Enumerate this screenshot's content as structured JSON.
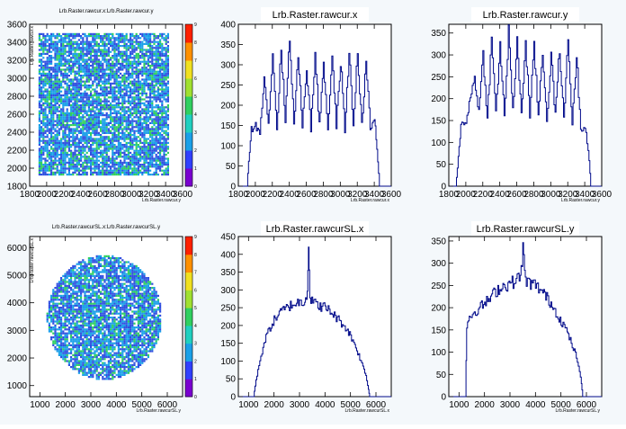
{
  "chart_data": [
    {
      "type": "heatmap",
      "title": "Lrb.Raster.rawcur.x:Lrb.Raster.rawcur.y",
      "xlabel": "Lrb.Raster.rawcur.y",
      "ylabel": "Lrb.Raster.rawcur.x",
      "xlim": [
        1800,
        3600
      ],
      "ylim": [
        1800,
        3600
      ],
      "xticks": [
        1800,
        2000,
        2200,
        2400,
        2600,
        2800,
        3000,
        3200,
        3400,
        3600
      ],
      "yticks": [
        1800,
        2000,
        2200,
        2400,
        2600,
        2800,
        3000,
        3200,
        3400,
        3600
      ],
      "region": {
        "shape": "rectangle",
        "x": [
          1900,
          3440
        ],
        "y": [
          1920,
          3520
        ]
      },
      "colorbar": {
        "min": 0,
        "max": 9,
        "ticks": [
          0,
          1,
          2,
          3,
          4,
          5,
          6,
          7,
          8,
          9
        ]
      },
      "colors": {
        "low": "#3050e0",
        "mid": "#1aa0e8",
        "high": "#30d060"
      }
    },
    {
      "type": "line",
      "title": "Lrb.Raster.rawcur.x",
      "xlabel": "Lrb.Raster.rawcur.x",
      "xlim": [
        1800,
        3600
      ],
      "ylim": [
        0,
        400
      ],
      "xticks": [
        1800,
        2000,
        2200,
        2400,
        2600,
        2800,
        3000,
        3200,
        3400,
        3600
      ],
      "yticks": [
        0,
        50,
        100,
        150,
        200,
        250,
        300,
        350,
        400
      ],
      "series": [
        {
          "x": [
            1800,
            1900,
            1920,
            1950,
            2000,
            2050,
            2100,
            2150,
            2200,
            2250,
            2300,
            2350,
            2400,
            2450,
            2500,
            2550,
            2600,
            2650,
            2700,
            2750,
            2800,
            2850,
            2900,
            2950,
            3000,
            3050,
            3100,
            3150,
            3200,
            3250,
            3300,
            3350,
            3400,
            3440,
            3460,
            3500,
            3600
          ],
          "y": [
            0,
            0,
            60,
            140,
            150,
            130,
            280,
            150,
            330,
            140,
            340,
            160,
            380,
            150,
            320,
            150,
            300,
            140,
            330,
            150,
            310,
            140,
            320,
            150,
            310,
            140,
            330,
            150,
            330,
            150,
            310,
            140,
            170,
            60,
            0,
            0,
            0
          ]
        }
      ]
    },
    {
      "type": "line",
      "title": "Lrb.Raster.rawcur.y",
      "xlabel": "Lrb.Raster.rawcur.y",
      "xlim": [
        1800,
        3600
      ],
      "ylim": [
        0,
        370
      ],
      "xticks": [
        1800,
        2000,
        2200,
        2400,
        2600,
        2800,
        3000,
        3200,
        3400,
        3600
      ],
      "yticks": [
        0,
        50,
        100,
        150,
        200,
        250,
        300,
        350
      ],
      "series": [
        {
          "x": [
            1800,
            1880,
            1900,
            1940,
            2000,
            2050,
            2100,
            2150,
            2200,
            2250,
            2300,
            2350,
            2400,
            2450,
            2500,
            2550,
            2600,
            2650,
            2700,
            2750,
            2800,
            2850,
            2900,
            2950,
            3000,
            3050,
            3100,
            3150,
            3200,
            3250,
            3300,
            3350,
            3400,
            3450,
            3470,
            3520,
            3600
          ],
          "y": [
            0,
            0,
            40,
            140,
            150,
            200,
            250,
            170,
            300,
            160,
            330,
            170,
            320,
            160,
            350,
            170,
            340,
            160,
            330,
            160,
            320,
            160,
            310,
            150,
            300,
            160,
            320,
            150,
            340,
            140,
            300,
            130,
            140,
            60,
            0,
            0,
            0
          ]
        }
      ]
    },
    {
      "type": "heatmap",
      "title": "Lrb.Raster.rawcurSL.x:Lrb.Raster.rawcurSL.y",
      "xlabel": "Lrb.Raster.rawcurSL.y",
      "ylabel": "Lrb.Raster.rawcurSL.x",
      "xlim": [
        600,
        6600
      ],
      "ylim": [
        600,
        6400
      ],
      "xticks": [
        1000,
        2000,
        3000,
        4000,
        5000,
        6000
      ],
      "yticks": [
        1000,
        2000,
        3000,
        4000,
        5000,
        6000
      ],
      "region": {
        "shape": "circle",
        "cx": 3500,
        "cy": 3500,
        "r": 2250
      },
      "colorbar": {
        "min": 0,
        "max": 9,
        "ticks": [
          0,
          1,
          2,
          3,
          4,
          5,
          6,
          7,
          8,
          9
        ]
      },
      "colors": {
        "low": "#3050e0",
        "mid": "#1aa0e8",
        "high": "#30d060"
      }
    },
    {
      "type": "line",
      "title": "Lrb.Raster.rawcurSL.x",
      "xlabel": "Lrb.Raster.rawcurSL.x",
      "xlim": [
        600,
        6600
      ],
      "ylim": [
        0,
        450
      ],
      "xticks": [
        1000,
        2000,
        3000,
        4000,
        5000,
        6000
      ],
      "yticks": [
        0,
        50,
        100,
        150,
        200,
        250,
        300,
        350,
        400,
        450
      ],
      "series": [
        {
          "x": [
            600,
            1200,
            1250,
            1400,
            1600,
            1800,
            2000,
            2200,
            2400,
            2600,
            2800,
            3000,
            3200,
            3300,
            3350,
            3400,
            3600,
            3800,
            4000,
            4200,
            4400,
            4600,
            4800,
            5000,
            5200,
            5400,
            5600,
            5700,
            5750,
            6600
          ],
          "y": [
            0,
            0,
            30,
            90,
            150,
            190,
            215,
            235,
            245,
            255,
            262,
            265,
            270,
            300,
            430,
            280,
            260,
            255,
            250,
            240,
            225,
            210,
            195,
            170,
            140,
            100,
            60,
            20,
            0,
            0
          ]
        }
      ]
    },
    {
      "type": "line",
      "title": "Lrb.Raster.rawcurSL.y",
      "xlabel": "Lrb.Raster.rawcurSL.y",
      "xlim": [
        600,
        6600
      ],
      "ylim": [
        0,
        360
      ],
      "xticks": [
        1000,
        2000,
        3000,
        4000,
        5000,
        6000
      ],
      "yticks": [
        0,
        50,
        100,
        150,
        200,
        250,
        300,
        350
      ],
      "series": [
        {
          "x": [
            600,
            1250,
            1300,
            1400,
            1600,
            1800,
            2000,
            2200,
            2400,
            2600,
            2800,
            3000,
            3200,
            3400,
            3500,
            3600,
            3800,
            4000,
            4200,
            4400,
            4600,
            4800,
            5000,
            5200,
            5400,
            5600,
            5800,
            5850,
            6600
          ],
          "y": [
            0,
            0,
            160,
            180,
            190,
            200,
            210,
            220,
            235,
            245,
            250,
            255,
            260,
            270,
            330,
            260,
            255,
            250,
            240,
            225,
            210,
            190,
            170,
            150,
            120,
            90,
            30,
            0,
            0
          ]
        }
      ]
    }
  ]
}
